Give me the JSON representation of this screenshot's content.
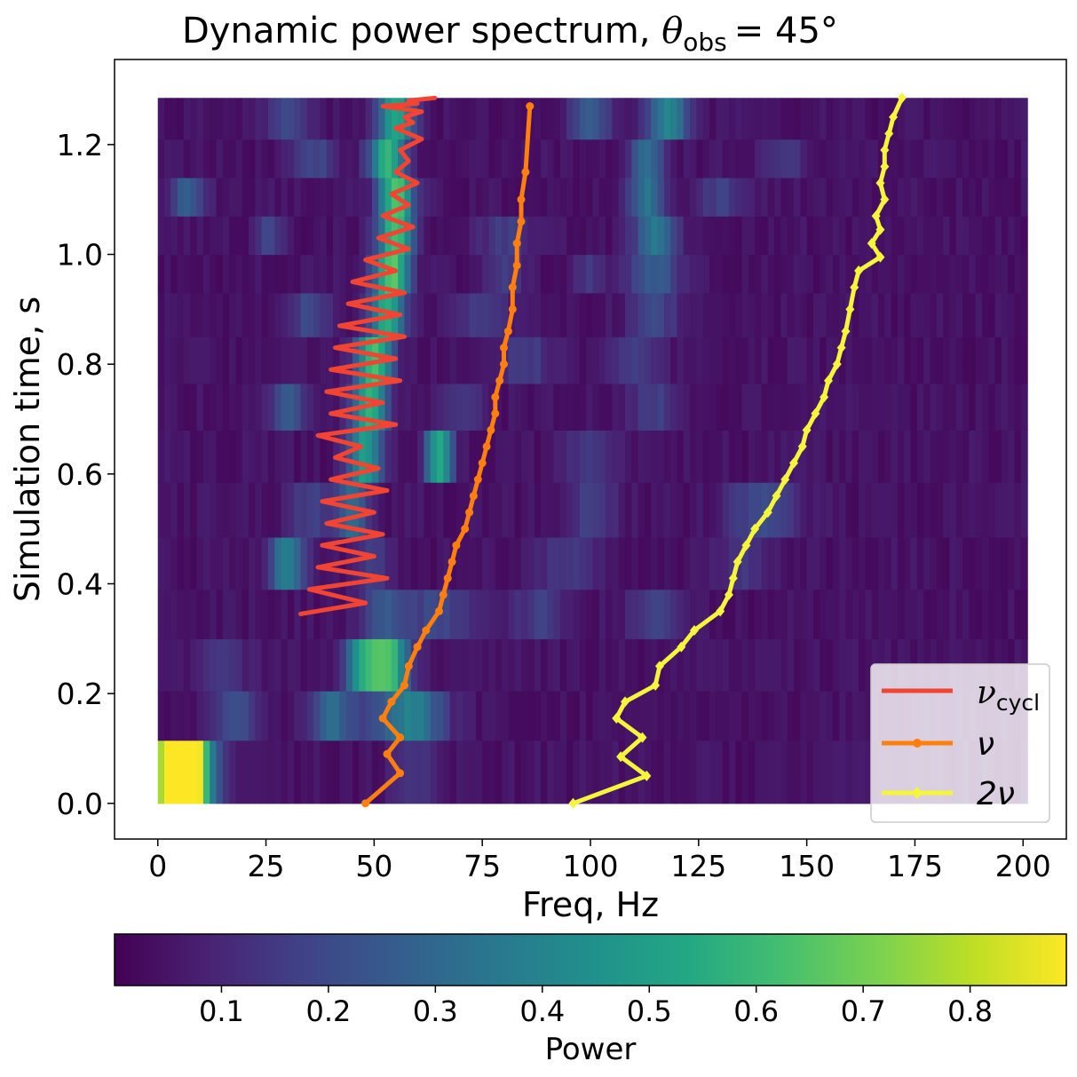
{
  "chart_data": {
    "type": "heatmap",
    "title": "Dynamic power spectrum, ",
    "title_math": {
      "symbol": "θ",
      "subscript": "obs",
      "rhs": "= 45°"
    },
    "xlabel": "Freq, Hz",
    "ylabel": "Simulation time, s",
    "xlim": [
      -10,
      210
    ],
    "ylim": [
      -0.065,
      1.355
    ],
    "xticks": [
      0,
      25,
      50,
      75,
      100,
      125,
      150,
      175,
      200
    ],
    "xtick_labels": [
      "0",
      "25",
      "50",
      "75",
      "100",
      "125",
      "150",
      "175",
      "200"
    ],
    "yticks": [
      0.0,
      0.2,
      0.4,
      0.6,
      0.8,
      1.0,
      1.2
    ],
    "ytick_labels": [
      "0.0",
      "0.2",
      "0.4",
      "0.6",
      "0.8",
      "1.0",
      "1.2"
    ],
    "colormap": "viridis",
    "colorbar": {
      "label": "Power",
      "range": [
        0.0,
        0.89
      ],
      "ticks": [
        0.1,
        0.2,
        0.3,
        0.4,
        0.5,
        0.6,
        0.7,
        0.8
      ],
      "tick_labels": [
        "0.1",
        "0.2",
        "0.3",
        "0.4",
        "0.5",
        "0.6",
        "0.7",
        "0.8"
      ]
    },
    "heatmap": {
      "freq_range": [
        0,
        201
      ],
      "time_edges": [
        0.0,
        0.115,
        0.205,
        0.3,
        0.39,
        0.485,
        0.585,
        0.68,
        0.765,
        0.85,
        0.93,
        1.0,
        1.07,
        1.14,
        1.21,
        1.285
      ],
      "row_peaks": [
        [
          [
            4,
            8,
            0.89
          ],
          [
            9,
            3,
            0.3
          ],
          [
            60,
            6,
            0.08
          ]
        ],
        [
          [
            18,
            5,
            0.18
          ],
          [
            40,
            5,
            0.25
          ],
          [
            55,
            10,
            0.2
          ],
          [
            60,
            6,
            0.18
          ]
        ],
        [
          [
            53,
            5,
            0.58
          ],
          [
            47,
            4,
            0.35
          ],
          [
            15,
            6,
            0.1
          ]
        ],
        [
          [
            52,
            5,
            0.2
          ],
          [
            65,
            8,
            0.15
          ],
          [
            88,
            6,
            0.12
          ],
          [
            115,
            6,
            0.12
          ]
        ],
        [
          [
            30,
            4,
            0.35
          ],
          [
            50,
            4,
            0.12
          ],
          [
            95,
            8,
            0.1
          ],
          [
            135,
            6,
            0.1
          ]
        ],
        [
          [
            45,
            4,
            0.25
          ],
          [
            35,
            5,
            0.12
          ],
          [
            140,
            8,
            0.16
          ],
          [
            100,
            6,
            0.12
          ]
        ],
        [
          [
            48,
            4,
            0.45
          ],
          [
            65,
            3,
            0.5
          ],
          [
            100,
            6,
            0.12
          ]
        ],
        [
          [
            49,
            4,
            0.55
          ],
          [
            30,
            4,
            0.22
          ],
          [
            70,
            5,
            0.1
          ],
          [
            115,
            6,
            0.12
          ]
        ],
        [
          [
            50,
            4,
            0.6
          ],
          [
            85,
            6,
            0.12
          ],
          [
            110,
            6,
            0.1
          ]
        ],
        [
          [
            53,
            4,
            0.52
          ],
          [
            35,
            5,
            0.15
          ],
          [
            75,
            6,
            0.12
          ],
          [
            115,
            6,
            0.14
          ]
        ],
        [
          [
            54,
            4,
            0.62
          ],
          [
            80,
            5,
            0.12
          ],
          [
            100,
            4,
            0.1
          ],
          [
            115,
            6,
            0.22
          ]
        ],
        [
          [
            55,
            4,
            0.6
          ],
          [
            26,
            3,
            0.15
          ],
          [
            80,
            6,
            0.12
          ],
          [
            115,
            5,
            0.3
          ]
        ],
        [
          [
            55,
            4,
            0.6
          ],
          [
            7,
            4,
            0.22
          ],
          [
            113,
            4,
            0.3
          ],
          [
            130,
            6,
            0.12
          ]
        ],
        [
          [
            53,
            4,
            0.55
          ],
          [
            36,
            5,
            0.15
          ],
          [
            113,
            4,
            0.28
          ],
          [
            145,
            5,
            0.12
          ]
        ],
        [
          [
            55,
            4,
            0.48
          ],
          [
            30,
            5,
            0.15
          ],
          [
            118,
            5,
            0.35
          ],
          [
            100,
            5,
            0.2
          ]
        ]
      ]
    },
    "series": [
      {
        "name": "ν_cycl",
        "color": "#f14432",
        "marker": "none",
        "x": [
          33,
          48,
          35,
          53,
          37,
          50,
          38,
          52,
          39,
          50,
          38,
          53,
          40,
          51,
          41,
          47,
          37,
          55,
          40,
          52,
          39,
          56,
          40,
          55,
          41,
          57,
          42,
          56,
          44,
          57,
          45,
          55,
          48,
          58,
          51,
          59,
          52,
          58,
          54,
          60,
          55,
          58,
          56,
          61,
          55,
          59,
          57,
          61,
          52,
          60,
          58,
          64
        ],
        "y": [
          0.345,
          0.365,
          0.39,
          0.41,
          0.43,
          0.45,
          0.47,
          0.49,
          0.51,
          0.53,
          0.55,
          0.57,
          0.59,
          0.61,
          0.63,
          0.65,
          0.67,
          0.69,
          0.71,
          0.73,
          0.75,
          0.77,
          0.79,
          0.81,
          0.83,
          0.85,
          0.87,
          0.89,
          0.91,
          0.93,
          0.95,
          0.97,
          0.99,
          1.01,
          1.03,
          1.05,
          1.07,
          1.09,
          1.11,
          1.13,
          1.15,
          1.17,
          1.19,
          1.21,
          1.23,
          1.24,
          1.25,
          1.26,
          1.27,
          1.275,
          1.28,
          1.285
        ]
      },
      {
        "name": "ν",
        "color": "#ff7f0e",
        "marker": "circle",
        "x": [
          48,
          56,
          53,
          56,
          52,
          54,
          57,
          58,
          60,
          62,
          65,
          66,
          67,
          68,
          69,
          71,
          72,
          73,
          74,
          75,
          76,
          77,
          78,
          78,
          79,
          80,
          80,
          81,
          82,
          82,
          83,
          83,
          84,
          84,
          85,
          86
        ],
        "y": [
          0.0,
          0.055,
          0.09,
          0.12,
          0.155,
          0.185,
          0.215,
          0.25,
          0.285,
          0.315,
          0.35,
          0.38,
          0.41,
          0.44,
          0.47,
          0.5,
          0.53,
          0.56,
          0.59,
          0.62,
          0.65,
          0.68,
          0.71,
          0.74,
          0.77,
          0.8,
          0.83,
          0.86,
          0.9,
          0.94,
          0.98,
          1.02,
          1.06,
          1.1,
          1.15,
          1.27
        ]
      },
      {
        "name": "2ν",
        "color": "#f5f53c",
        "marker": "diamond",
        "x": [
          96,
          113,
          107,
          112,
          106,
          108,
          115,
          116,
          121,
          124,
          130,
          132,
          133,
          134,
          136,
          138,
          141,
          143,
          145,
          147,
          149,
          150,
          152,
          154,
          155,
          157,
          158,
          159,
          160,
          161,
          162,
          167,
          165,
          167,
          166,
          168,
          167,
          168,
          168,
          169,
          170,
          172
        ],
        "y": [
          0.0,
          0.05,
          0.085,
          0.12,
          0.155,
          0.185,
          0.215,
          0.25,
          0.285,
          0.315,
          0.35,
          0.38,
          0.41,
          0.44,
          0.47,
          0.5,
          0.53,
          0.56,
          0.59,
          0.62,
          0.65,
          0.68,
          0.71,
          0.74,
          0.77,
          0.8,
          0.83,
          0.86,
          0.9,
          0.94,
          0.97,
          0.995,
          1.02,
          1.045,
          1.07,
          1.1,
          1.13,
          1.16,
          1.19,
          1.22,
          1.25,
          1.285
        ]
      }
    ],
    "legend": {
      "position": "lower right",
      "entries": [
        {
          "symbol": "ν",
          "subscript": "cycl"
        },
        {
          "symbol": "ν",
          "subscript": ""
        },
        {
          "symbol": "2ν",
          "subscript": ""
        }
      ]
    },
    "grid": false
  }
}
